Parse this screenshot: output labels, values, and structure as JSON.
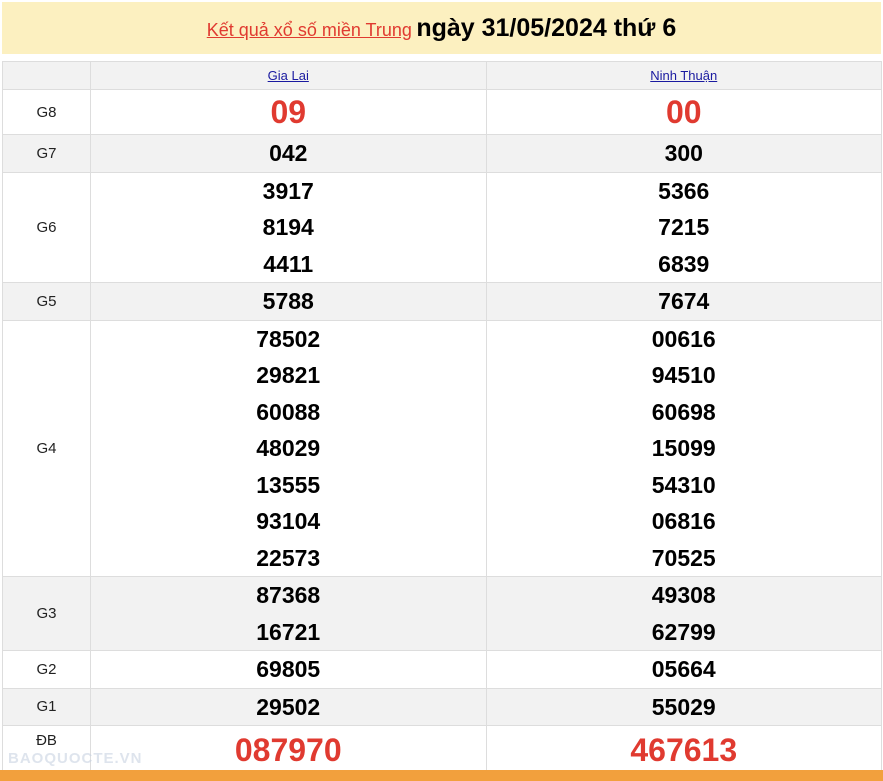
{
  "title": {
    "link": "Kết quả xổ số miền Trung",
    "date": "ngày 31/05/2024 thứ 6"
  },
  "provinces": [
    "Gia Lai",
    "Ninh Thuận"
  ],
  "rows": [
    {
      "label": "G8",
      "a": [
        "09"
      ],
      "b": [
        "00"
      ]
    },
    {
      "label": "G7",
      "a": [
        "042"
      ],
      "b": [
        "300"
      ]
    },
    {
      "label": "G6",
      "a": [
        "3917",
        "8194",
        "4411"
      ],
      "b": [
        "5366",
        "7215",
        "6839"
      ]
    },
    {
      "label": "G5",
      "a": [
        "5788"
      ],
      "b": [
        "7674"
      ]
    },
    {
      "label": "G4",
      "a": [
        "78502",
        "29821",
        "60088",
        "48029",
        "13555",
        "93104",
        "22573"
      ],
      "b": [
        "00616",
        "94510",
        "60698",
        "15099",
        "54310",
        "06816",
        "70525"
      ]
    },
    {
      "label": "G3",
      "a": [
        "87368",
        "16721"
      ],
      "b": [
        "49308",
        "62799"
      ]
    },
    {
      "label": "G2",
      "a": [
        "69805"
      ],
      "b": [
        "05664"
      ]
    },
    {
      "label": "G1",
      "a": [
        "29502"
      ],
      "b": [
        "55029"
      ]
    },
    {
      "label": "ĐB",
      "a": [
        "087970"
      ],
      "b": [
        "467613"
      ]
    }
  ],
  "watermark": "BAOQUOCTE.VN",
  "colors": {
    "red": "#e03a30",
    "banner": "#fcf0c0",
    "footer": "#f2a03d"
  }
}
